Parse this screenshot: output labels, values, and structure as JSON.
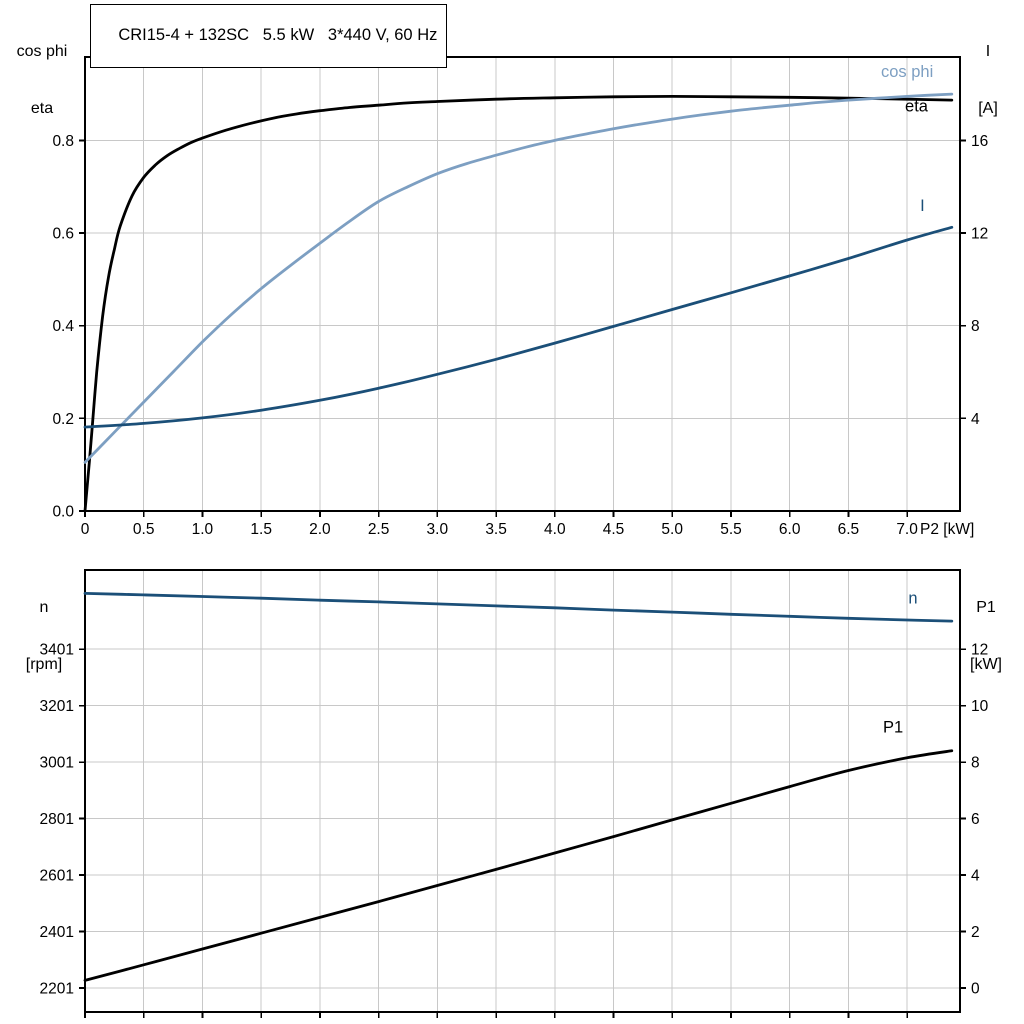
{
  "title": "CRI15-4 + 132SC   5.5 kW   3*440 V, 60 Hz",
  "colors": {
    "eta": "#000000",
    "cos_phi": "#7d9fc2",
    "current": "#1b4f78",
    "speed": "#1b4f78",
    "p1": "#000000",
    "grid": "#c8c8c8",
    "frame": "#000000",
    "tick_text": "#000000"
  },
  "chart_data": [
    {
      "type": "line",
      "title": "CRI15-4 + 132SC   5.5 kW   3*440 V, 60 Hz",
      "xlabel": "P2 [kW]",
      "x": {
        "lim": [
          0,
          7.45
        ],
        "ticks": [
          0,
          0.5,
          1,
          1.5,
          2,
          2.5,
          3,
          3.5,
          4,
          4.5,
          5,
          5.5,
          6,
          6.5,
          7
        ],
        "tick_labels": [
          "0",
          "0.5",
          "1.0",
          "1.5",
          "2.0",
          "2.5",
          "3.0",
          "3.5",
          "4.0",
          "4.5",
          "5.0",
          "5.5",
          "6.0",
          "6.5",
          "7.0"
        ],
        "label": "P2 [kW]",
        "show_tick_labels": true
      },
      "left_axis": {
        "title_line1": "cos phi",
        "title_line2": "eta",
        "lim": [
          0,
          0.98
        ],
        "ticks": [
          0,
          0.2,
          0.4,
          0.6,
          0.8
        ],
        "tick_labels": [
          "0.0",
          "0.2",
          "0.4",
          "0.6",
          "0.8"
        ]
      },
      "right_axis": {
        "title_line1": "I",
        "title_line2": "[A]",
        "lim": [
          0,
          19.6
        ],
        "ticks": [
          4,
          8,
          12,
          16
        ],
        "tick_labels": [
          "4",
          "8",
          "12",
          "16"
        ]
      },
      "series": [
        {
          "name": "eta",
          "axis": "left",
          "color_key": "eta",
          "label": "eta",
          "label_at": [
            7.08,
            0.862
          ],
          "points": [
            [
              0,
              0
            ],
            [
              0.03,
              0.085
            ],
            [
              0.06,
              0.175
            ],
            [
              0.1,
              0.3
            ],
            [
              0.15,
              0.42
            ],
            [
              0.2,
              0.505
            ],
            [
              0.25,
              0.565
            ],
            [
              0.3,
              0.615
            ],
            [
              0.4,
              0.68
            ],
            [
              0.5,
              0.72
            ],
            [
              0.6,
              0.747
            ],
            [
              0.7,
              0.767
            ],
            [
              0.8,
              0.782
            ],
            [
              0.9,
              0.795
            ],
            [
              1,
              0.805
            ],
            [
              1.2,
              0.822
            ],
            [
              1.4,
              0.836
            ],
            [
              1.6,
              0.848
            ],
            [
              1.8,
              0.857
            ],
            [
              2,
              0.864
            ],
            [
              2.25,
              0.871
            ],
            [
              2.5,
              0.876
            ],
            [
              2.75,
              0.881
            ],
            [
              3,
              0.884
            ],
            [
              3.5,
              0.889
            ],
            [
              4,
              0.892
            ],
            [
              4.5,
              0.894
            ],
            [
              5,
              0.895
            ],
            [
              5.5,
              0.894
            ],
            [
              6,
              0.893
            ],
            [
              6.5,
              0.891
            ],
            [
              7,
              0.889
            ],
            [
              7.38,
              0.887
            ]
          ]
        },
        {
          "name": "cos phi",
          "axis": "left",
          "color_key": "cos_phi",
          "label": "cos phi",
          "label_at": [
            7.0,
            0.937
          ],
          "points": [
            [
              0,
              0.105
            ],
            [
              0.25,
              0.17
            ],
            [
              0.5,
              0.235
            ],
            [
              0.75,
              0.3
            ],
            [
              1,
              0.365
            ],
            [
              1.25,
              0.425
            ],
            [
              1.5,
              0.48
            ],
            [
              1.75,
              0.53
            ],
            [
              2,
              0.578
            ],
            [
              2.25,
              0.625
            ],
            [
              2.5,
              0.668
            ],
            [
              2.75,
              0.7
            ],
            [
              3,
              0.728
            ],
            [
              3.25,
              0.75
            ],
            [
              3.5,
              0.768
            ],
            [
              3.75,
              0.785
            ],
            [
              4,
              0.8
            ],
            [
              4.25,
              0.813
            ],
            [
              4.5,
              0.825
            ],
            [
              4.75,
              0.836
            ],
            [
              5,
              0.846
            ],
            [
              5.25,
              0.855
            ],
            [
              5.5,
              0.863
            ],
            [
              5.75,
              0.87
            ],
            [
              6,
              0.876
            ],
            [
              6.25,
              0.882
            ],
            [
              6.5,
              0.887
            ],
            [
              6.75,
              0.891
            ],
            [
              7,
              0.895
            ],
            [
              7.38,
              0.9
            ]
          ]
        },
        {
          "name": "I",
          "axis": "right",
          "color_key": "current",
          "label": "I",
          "label_at": [
            7.13,
            12.95
          ],
          "points": [
            [
              0,
              3.62
            ],
            [
              0.5,
              3.78
            ],
            [
              1,
              4.02
            ],
            [
              1.5,
              4.35
            ],
            [
              2,
              4.78
            ],
            [
              2.5,
              5.3
            ],
            [
              3,
              5.9
            ],
            [
              3.5,
              6.55
            ],
            [
              4,
              7.25
            ],
            [
              4.5,
              7.97
            ],
            [
              5,
              8.7
            ],
            [
              5.5,
              9.42
            ],
            [
              6,
              10.15
            ],
            [
              6.5,
              10.9
            ],
            [
              7,
              11.7
            ],
            [
              7.38,
              12.25
            ]
          ]
        }
      ]
    },
    {
      "type": "line",
      "title": "",
      "xlabel": "",
      "x": {
        "lim": [
          0,
          7.45
        ],
        "ticks": [
          0,
          0.5,
          1,
          1.5,
          2,
          2.5,
          3,
          3.5,
          4,
          4.5,
          5,
          5.5,
          6,
          6.5,
          7
        ],
        "tick_labels": [
          "0",
          "0.5",
          "1.0",
          "1.5",
          "2.0",
          "2.5",
          "3.0",
          "3.5",
          "4.0",
          "4.5",
          "5.0",
          "5.5",
          "6.0",
          "6.5",
          "7.0"
        ],
        "label": "",
        "show_tick_labels": false
      },
      "left_axis": {
        "title_line1": "n",
        "title_line2": "[rpm]",
        "lim": [
          2116,
          3681
        ],
        "ticks": [
          2201,
          2401,
          2601,
          2801,
          3001,
          3201,
          3401
        ],
        "tick_labels": [
          "2201",
          "2401",
          "2601",
          "2801",
          "3001",
          "3201",
          "3401"
        ]
      },
      "right_axis": {
        "title_line1": "P1",
        "title_line2": "[kW]",
        "lim": [
          -0.85,
          14.8
        ],
        "ticks": [
          0,
          2,
          4,
          6,
          8,
          10,
          12
        ],
        "tick_labels": [
          "0",
          "2",
          "4",
          "6",
          "8",
          "10",
          "12"
        ]
      },
      "series": [
        {
          "name": "n",
          "axis": "left",
          "color_key": "speed",
          "label": "n",
          "label_at": [
            7.05,
            3562
          ],
          "points": [
            [
              0,
              3598
            ],
            [
              0.5,
              3593
            ],
            [
              1,
              3587
            ],
            [
              1.5,
              3581
            ],
            [
              2,
              3574
            ],
            [
              2.5,
              3568
            ],
            [
              3,
              3561
            ],
            [
              3.5,
              3554
            ],
            [
              4,
              3547
            ],
            [
              4.5,
              3539
            ],
            [
              5,
              3532
            ],
            [
              5.5,
              3524
            ],
            [
              6,
              3517
            ],
            [
              6.5,
              3510
            ],
            [
              7,
              3504
            ],
            [
              7.38,
              3500
            ]
          ]
        },
        {
          "name": "P1",
          "axis": "right",
          "color_key": "p1",
          "label": "P1",
          "label_at": [
            6.88,
            9.05
          ],
          "points": [
            [
              0,
              0.27
            ],
            [
              0.5,
              0.82
            ],
            [
              1,
              1.38
            ],
            [
              1.5,
              1.94
            ],
            [
              2,
              2.5
            ],
            [
              2.5,
              3.06
            ],
            [
              3,
              3.63
            ],
            [
              3.5,
              4.2
            ],
            [
              4,
              4.78
            ],
            [
              4.5,
              5.36
            ],
            [
              5,
              5.95
            ],
            [
              5.5,
              6.54
            ],
            [
              6,
              7.13
            ],
            [
              6.5,
              7.7
            ],
            [
              7,
              8.15
            ],
            [
              7.38,
              8.4
            ]
          ]
        }
      ]
    }
  ]
}
